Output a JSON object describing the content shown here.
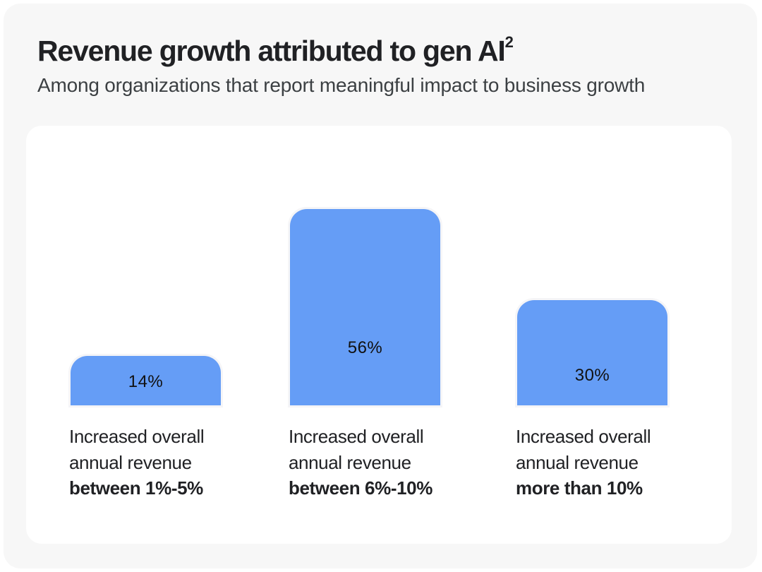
{
  "card": {
    "title": "Revenue growth attributed to gen AI",
    "title_footnote": "2",
    "subtitle": "Among organizations that report meaningful impact to business growth"
  },
  "colors": {
    "bar": "#659df6",
    "background": "#f7f7f7",
    "panel": "#ffffff",
    "text": "#202124"
  },
  "chart_data": {
    "type": "bar",
    "title": "Revenue growth attributed to gen AI²",
    "subtitle": "Among organizations that report meaningful impact to business growth",
    "categories": [
      "Increased overall annual revenue between 1%-5%",
      "Increased overall annual revenue between 6%-10%",
      "Increased overall annual revenue more than 10%"
    ],
    "values": [
      14,
      56,
      30
    ],
    "unit": "%",
    "xlabel": "",
    "ylabel": "",
    "ylim": [
      0,
      56
    ],
    "grid": false,
    "legend": "none",
    "bars": [
      {
        "value": 14,
        "label": "14%",
        "line1": "Increased overall",
        "line2": "annual revenue",
        "line3": "between 1%-5%"
      },
      {
        "value": 56,
        "label": "56%",
        "line1": "Increased overall",
        "line2": "annual revenue",
        "line3": "between 6%-10%"
      },
      {
        "value": 30,
        "label": "30%",
        "line1": "Increased overall",
        "line2": "annual revenue",
        "line3": "more than 10%"
      }
    ]
  }
}
